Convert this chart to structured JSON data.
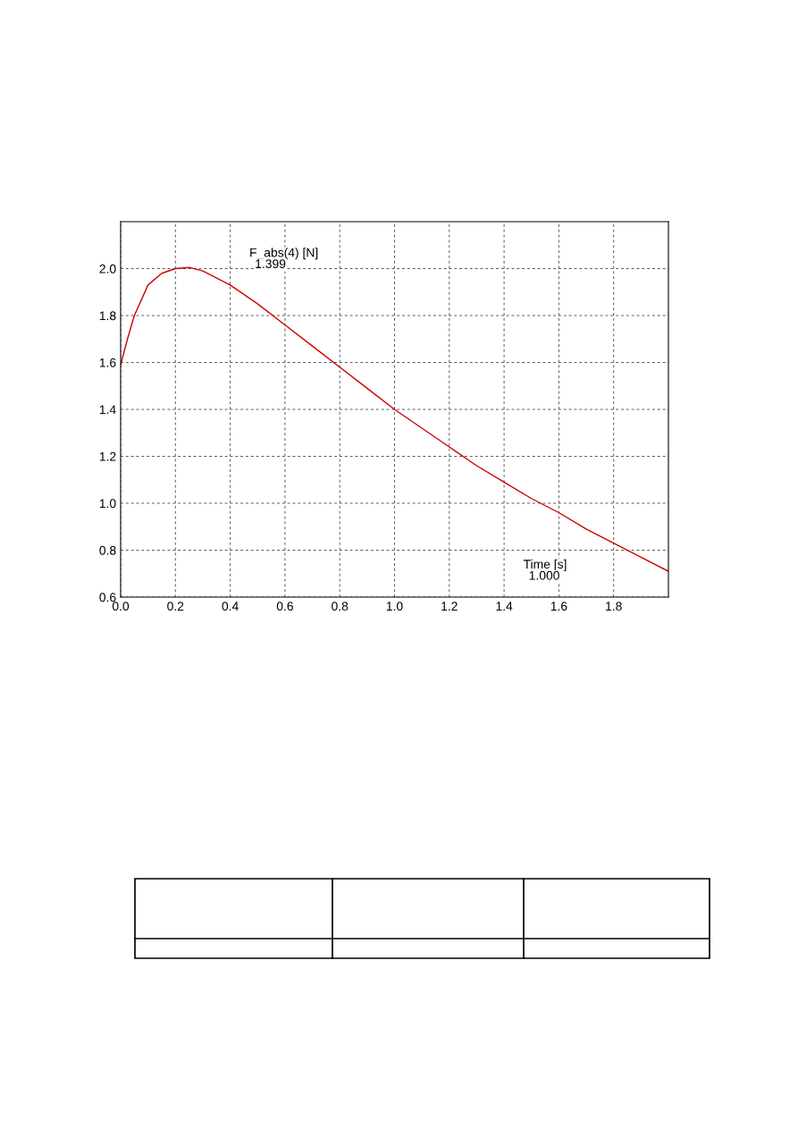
{
  "chart_data": {
    "type": "line",
    "x": [
      0.0,
      0.025,
      0.05,
      0.1,
      0.15,
      0.2,
      0.25,
      0.3,
      0.4,
      0.5,
      0.6,
      0.7,
      0.8,
      0.9,
      1.0,
      1.1,
      1.2,
      1.3,
      1.4,
      1.5,
      1.6,
      1.7,
      1.8,
      1.9,
      2.0
    ],
    "series": [
      {
        "color": "#cc0000",
        "values": [
          1.59,
          1.7,
          1.8,
          1.93,
          1.98,
          2.0,
          2.005,
          1.99,
          1.93,
          1.85,
          1.76,
          1.67,
          1.58,
          1.49,
          1.4,
          1.32,
          1.24,
          1.16,
          1.09,
          1.02,
          0.96,
          0.89,
          0.83,
          0.77,
          0.71
        ]
      }
    ],
    "xlim": [
      0,
      2.0
    ],
    "xticks": [
      {
        "value": 0,
        "label": "0.0"
      },
      {
        "value": 0.2,
        "label": "0.2"
      },
      {
        "value": 0.4,
        "label": "0.4"
      },
      {
        "value": 0.6,
        "label": "0.6"
      },
      {
        "value": 0.8,
        "label": "0.8"
      },
      {
        "value": 1.0,
        "label": "1.0"
      },
      {
        "value": 1.2,
        "label": "1.2"
      },
      {
        "value": 1.4,
        "label": "1.4"
      },
      {
        "value": 1.6,
        "label": "1.6"
      },
      {
        "value": 1.8,
        "label": "1.8"
      }
    ],
    "ylim": [
      0.6,
      2.2
    ],
    "yticks": [
      {
        "value": 0.6,
        "label": "0.6"
      },
      {
        "value": 0.8,
        "label": "0.8"
      },
      {
        "value": 1.0,
        "label": "1.0"
      },
      {
        "value": 1.2,
        "label": "1.2"
      },
      {
        "value": 1.4,
        "label": "1.4"
      },
      {
        "value": 1.6,
        "label": "1.6"
      },
      {
        "value": 1.8,
        "label": "1.8"
      },
      {
        "value": 2.0,
        "label": "2.0"
      }
    ],
    "annotations": [
      "F_abs(4) [N]",
      "1.399",
      "Time [s]",
      "1.000"
    ],
    "grid": true,
    "marker": "none",
    "line_style": "solid"
  }
}
